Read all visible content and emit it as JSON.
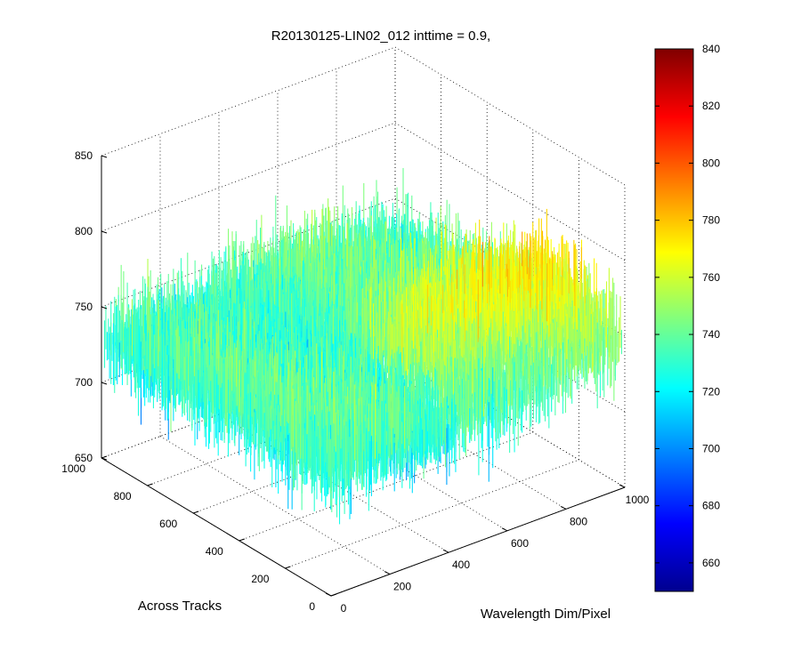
{
  "chart_data": {
    "type": "surface",
    "title": "R20130125-LIN02_012 inttime = 0.9,",
    "xlabel": "Wavelength Dim/Pixel",
    "ylabel": "Across Tracks",
    "zlabel": "",
    "xlim": [
      0,
      1000
    ],
    "ylim": [
      0,
      1000
    ],
    "zlim": [
      650,
      850
    ],
    "x_ticks": [
      "0",
      "200",
      "400",
      "600",
      "800",
      "1000"
    ],
    "y_ticks": [
      "0",
      "200",
      "400",
      "600",
      "800",
      "1000"
    ],
    "z_ticks": [
      "650",
      "700",
      "750",
      "800",
      "850"
    ],
    "grid": true,
    "colormap": "jet",
    "colorbar": {
      "range": [
        650,
        840
      ],
      "ticks": [
        "660",
        "680",
        "700",
        "720",
        "740",
        "760",
        "780",
        "800",
        "820",
        "840"
      ]
    },
    "surface_summary": {
      "typical_value": 730,
      "noise_min": 655,
      "noise_max": 805,
      "high_band_wavelength_range": [
        450,
        1000
      ],
      "high_band_value": 760
    }
  }
}
